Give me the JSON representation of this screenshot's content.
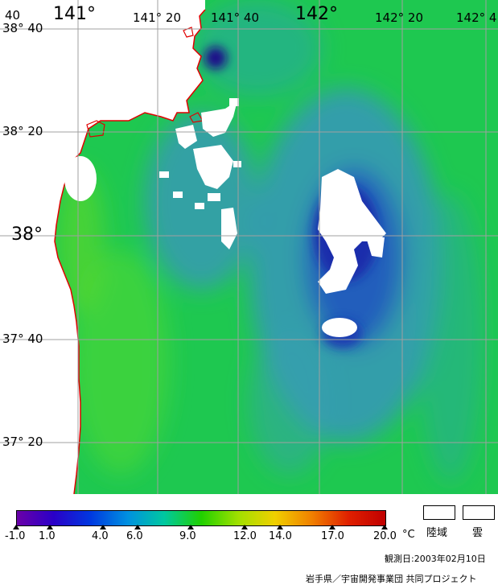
{
  "map": {
    "longitude_labels": [
      "141°",
      "141° 20",
      "141° 40",
      "142°",
      "142° 20",
      "142° 4"
    ],
    "latitude_labels": [
      "38° 40",
      "38° 20",
      "38°",
      "37° 40",
      "37° 20"
    ],
    "corner_label": "40"
  },
  "colorbar": {
    "ticks": [
      "-1.0",
      "1.0",
      "4.0",
      "6.0",
      "9.0",
      "12.0",
      "14.0",
      "17.0",
      "20.0"
    ],
    "unit": "°C",
    "colors": [
      "#6a00a8",
      "#2a00c8",
      "#0038e0",
      "#0090e0",
      "#00c8a0",
      "#20d000",
      "#a0e000",
      "#f0d000",
      "#f08000",
      "#e02000",
      "#c00000"
    ]
  },
  "legend": {
    "land_label": "陸域",
    "cloud_label": "雲"
  },
  "footer": {
    "observation_date": "観測日:2003年02月10日",
    "credit": "岩手県／宇宙開発事業団 共同プロジェクト"
  }
}
